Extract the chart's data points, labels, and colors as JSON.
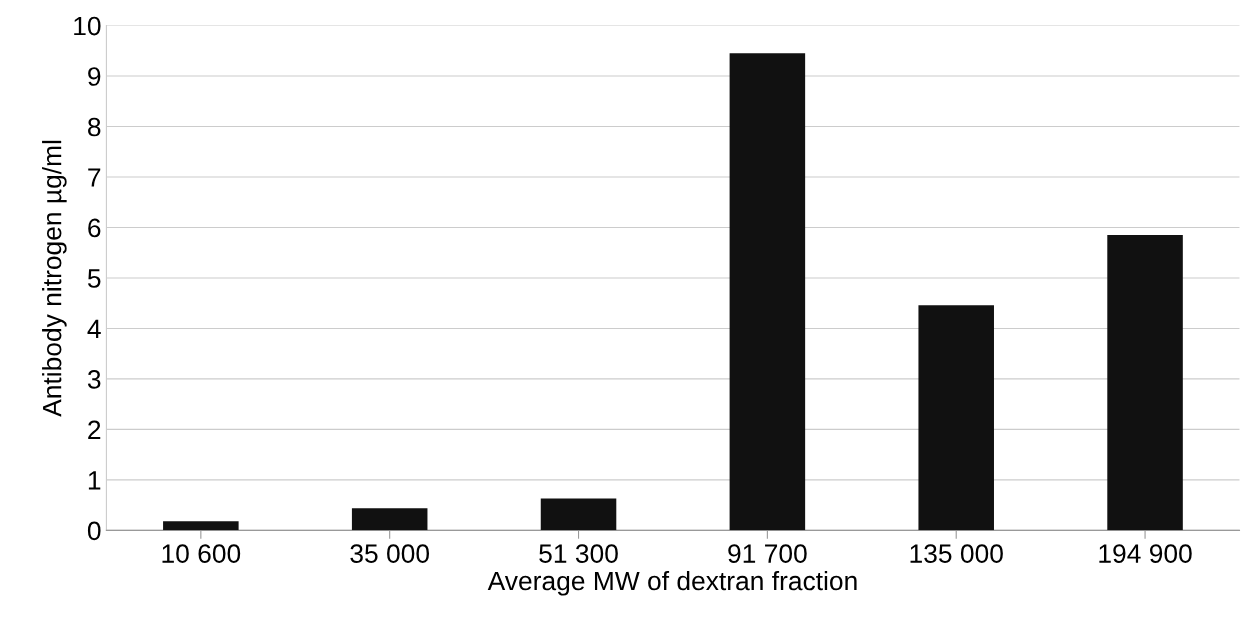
{
  "chart_data": {
    "type": "bar",
    "xlabel": "Average MW of dextran fraction",
    "ylabel": "Antibody nitrogen µg/ml",
    "categories": [
      "10 600",
      "35 000",
      "51 300",
      "91 700",
      "135 000",
      "194 900"
    ],
    "values": [
      0.18,
      0.44,
      0.63,
      9.45,
      4.46,
      5.85
    ],
    "color": "#111111",
    "ylim": [
      0,
      10
    ],
    "yticks": [
      0,
      1,
      2,
      3,
      4,
      5,
      6,
      7,
      8,
      9,
      10
    ],
    "grid": "y"
  }
}
